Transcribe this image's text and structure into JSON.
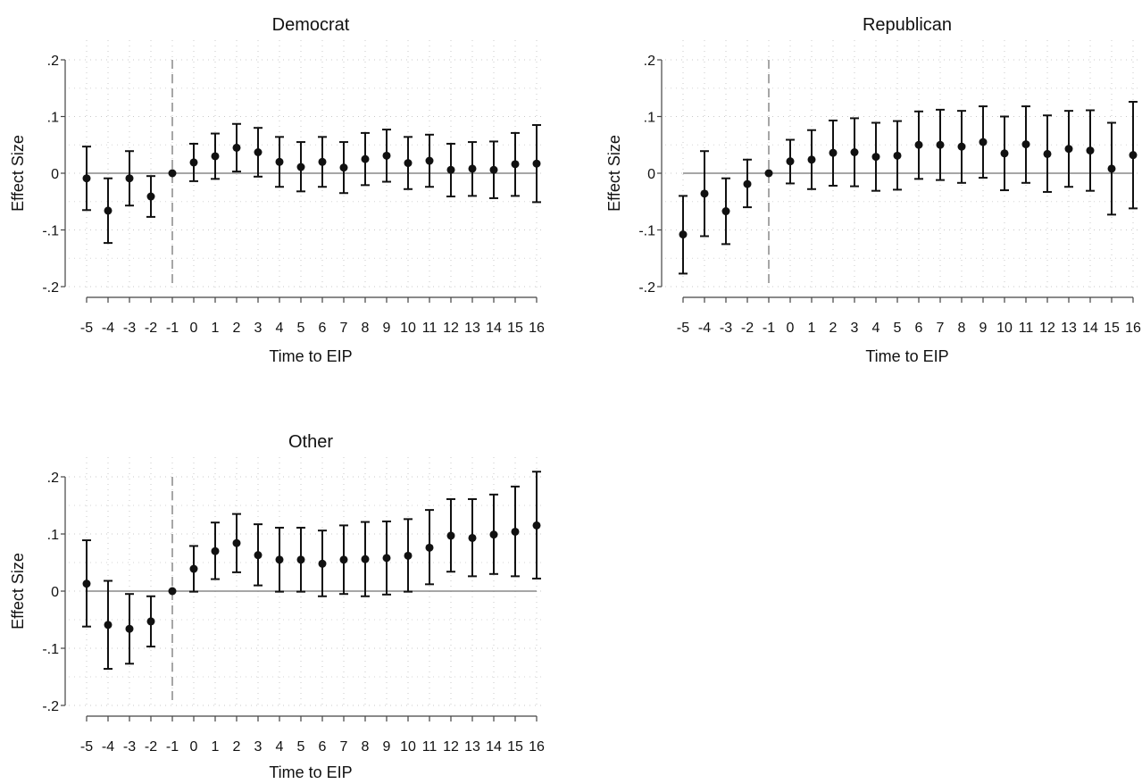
{
  "chart_data": [
    {
      "type": "scatter",
      "title": "Democrat",
      "xlabel": "Time to EIP",
      "ylabel": "Effect Size",
      "x": [
        -5,
        -4,
        -3,
        -2,
        -1,
        0,
        1,
        2,
        3,
        4,
        5,
        6,
        7,
        8,
        9,
        10,
        11,
        12,
        13,
        14,
        15,
        16
      ],
      "estimate": [
        -0.009,
        -0.066,
        -0.009,
        -0.041,
        0,
        0.019,
        0.03,
        0.045,
        0.037,
        0.02,
        0.011,
        0.02,
        0.01,
        0.025,
        0.031,
        0.018,
        0.022,
        0.006,
        0.008,
        0.006,
        0.016,
        0.017
      ],
      "ci_low": [
        -0.065,
        -0.123,
        -0.057,
        -0.077,
        0,
        -0.014,
        -0.01,
        0.003,
        -0.006,
        -0.024,
        -0.032,
        -0.024,
        -0.035,
        -0.021,
        -0.015,
        -0.028,
        -0.024,
        -0.041,
        -0.04,
        -0.044,
        -0.04,
        -0.051
      ],
      "ci_high": [
        0.047,
        -0.009,
        0.039,
        -0.005,
        0,
        0.052,
        0.07,
        0.087,
        0.08,
        0.064,
        0.055,
        0.064,
        0.055,
        0.071,
        0.077,
        0.064,
        0.068,
        0.052,
        0.055,
        0.056,
        0.071,
        0.085
      ],
      "xticks": [
        "-5",
        "-4",
        "-3",
        "-2",
        "-1",
        "0",
        "1",
        "2",
        "3",
        "4",
        "5",
        "6",
        "7",
        "8",
        "9",
        "10",
        "11",
        "12",
        "13",
        "14",
        "15",
        "16"
      ],
      "yticks": [
        ".2",
        ".1",
        "0",
        "-.1",
        "-.2"
      ],
      "ylim": [
        -0.2,
        0.2
      ],
      "reference_vline_x": -1,
      "reference_hline_y": 0,
      "grid": "dotted"
    },
    {
      "type": "scatter",
      "title": "Republican",
      "xlabel": "Time to EIP",
      "ylabel": "Effect Size",
      "x": [
        -5,
        -4,
        -3,
        -2,
        -1,
        0,
        1,
        2,
        3,
        4,
        5,
        6,
        7,
        8,
        9,
        10,
        11,
        12,
        13,
        14,
        15,
        16
      ],
      "estimate": [
        -0.108,
        -0.036,
        -0.067,
        -0.019,
        0,
        0.021,
        0.024,
        0.036,
        0.037,
        0.029,
        0.031,
        0.05,
        0.05,
        0.047,
        0.055,
        0.035,
        0.051,
        0.034,
        0.043,
        0.04,
        0.008,
        0.032
      ],
      "ci_low": [
        -0.177,
        -0.111,
        -0.125,
        -0.06,
        0,
        -0.018,
        -0.028,
        -0.022,
        -0.023,
        -0.031,
        -0.029,
        -0.01,
        -0.012,
        -0.017,
        -0.008,
        -0.03,
        -0.017,
        -0.033,
        -0.024,
        -0.031,
        -0.073,
        -0.062
      ],
      "ci_high": [
        -0.04,
        0.039,
        -0.009,
        0.024,
        0,
        0.059,
        0.076,
        0.093,
        0.097,
        0.089,
        0.092,
        0.109,
        0.112,
        0.11,
        0.118,
        0.1,
        0.118,
        0.102,
        0.11,
        0.111,
        0.089,
        0.126
      ],
      "xticks": [
        "-5",
        "-4",
        "-3",
        "-2",
        "-1",
        "0",
        "1",
        "2",
        "3",
        "4",
        "5",
        "6",
        "7",
        "8",
        "9",
        "10",
        "11",
        "12",
        "13",
        "14",
        "15",
        "16"
      ],
      "yticks": [
        ".2",
        ".1",
        "0",
        "-.1",
        "-.2"
      ],
      "ylim": [
        -0.2,
        0.2
      ],
      "reference_vline_x": -1,
      "reference_hline_y": 0,
      "grid": "dotted"
    },
    {
      "type": "scatter",
      "title": "Other",
      "xlabel": "Time to EIP",
      "ylabel": "Effect Size",
      "x": [
        -5,
        -4,
        -3,
        -2,
        -1,
        0,
        1,
        2,
        3,
        4,
        5,
        6,
        7,
        8,
        9,
        10,
        11,
        12,
        13,
        14,
        15,
        16
      ],
      "estimate": [
        0.013,
        -0.059,
        -0.066,
        -0.053,
        0,
        0.039,
        0.07,
        0.084,
        0.063,
        0.055,
        0.055,
        0.048,
        0.055,
        0.056,
        0.058,
        0.062,
        0.076,
        0.097,
        0.093,
        0.099,
        0.104,
        0.115
      ],
      "ci_low": [
        -0.062,
        -0.136,
        -0.127,
        -0.097,
        0,
        -0.001,
        0.021,
        0.033,
        0.01,
        -0.001,
        -0.001,
        -0.009,
        -0.005,
        -0.009,
        -0.006,
        -0.001,
        0.012,
        0.034,
        0.026,
        0.03,
        0.026,
        0.022
      ],
      "ci_high": [
        0.089,
        0.018,
        -0.005,
        -0.009,
        0,
        0.079,
        0.12,
        0.135,
        0.117,
        0.111,
        0.111,
        0.106,
        0.115,
        0.121,
        0.122,
        0.126,
        0.142,
        0.161,
        0.161,
        0.169,
        0.183,
        0.209
      ],
      "xticks": [
        "-5",
        "-4",
        "-3",
        "-2",
        "-1",
        "0",
        "1",
        "2",
        "3",
        "4",
        "5",
        "6",
        "7",
        "8",
        "9",
        "10",
        "11",
        "12",
        "13",
        "14",
        "15",
        "16"
      ],
      "yticks": [
        ".2",
        ".1",
        "0",
        "-.1",
        "-.2"
      ],
      "ylim": [
        -0.2,
        0.2
      ],
      "reference_vline_x": -1,
      "reference_hline_y": 0,
      "grid": "dotted"
    }
  ]
}
